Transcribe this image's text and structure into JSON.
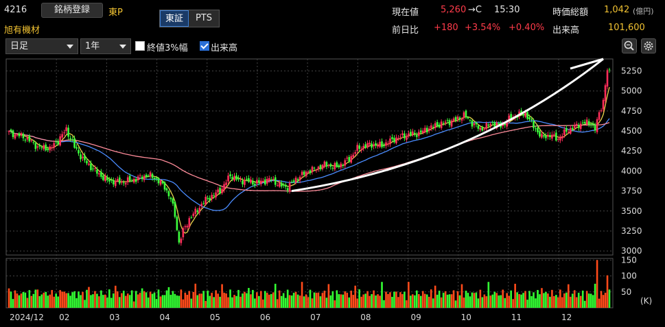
{
  "header": {
    "code": "4216",
    "register_label": "銘柄登録",
    "market": "東P",
    "name": "旭有機材",
    "exchange_tabs": [
      "東証",
      "PTS"
    ],
    "current_label": "現在値",
    "current_value": "5,260",
    "current_suffix": "→C",
    "current_time": "15:30",
    "marketcap_label": "時価総額",
    "marketcap_value": "1,042",
    "marketcap_unit": "(億円)",
    "change_label": "前日比",
    "change_abs": "+180",
    "change_pct": "+3.54%",
    "change_pct2": "+0.40%",
    "volume_label": "出来高",
    "volume_value": "101,600"
  },
  "toolbar": {
    "period_select": "日足",
    "range_select": "1年",
    "check1_label": "終値3%幅",
    "check1_checked": false,
    "check2_label": "出来高",
    "check2_checked": true,
    "zoom_icon": "magnifier-icon",
    "settings_icon": "gear-icon"
  },
  "colors": {
    "up": "#ff2d5a",
    "down": "#3cff3c",
    "ma_short": "#e8d44d",
    "ma_mid": "#4a8cff",
    "ma_long": "#ff8c9a",
    "vol_up": "#ff4a1a",
    "vol_down": "#33ff33"
  },
  "chart_data": {
    "type": "candlestick",
    "price_axis": {
      "ticks": [
        3000,
        3250,
        3500,
        3750,
        4000,
        4250,
        4500,
        4750,
        5000,
        5250
      ],
      "range": [
        2950,
        5400
      ]
    },
    "volume_axis": {
      "ticks": [
        50,
        100,
        150
      ],
      "unit": "(K)",
      "range": [
        0,
        155
      ]
    },
    "x_labels": [
      "2024/12",
      "02",
      "03",
      "04",
      "05",
      "06",
      "07",
      "08",
      "09",
      "10",
      "11",
      "12"
    ],
    "close_anchors": [
      [
        0,
        4480
      ],
      [
        8,
        4420
      ],
      [
        14,
        4300
      ],
      [
        20,
        4280
      ],
      [
        24,
        4380
      ],
      [
        28,
        4520
      ],
      [
        32,
        4300
      ],
      [
        36,
        4150
      ],
      [
        42,
        4000
      ],
      [
        48,
        3880
      ],
      [
        55,
        3860
      ],
      [
        62,
        3900
      ],
      [
        68,
        3950
      ],
      [
        72,
        3900
      ],
      [
        76,
        3800
      ],
      [
        79,
        3650
      ],
      [
        81,
        3450
      ],
      [
        83,
        3100
      ],
      [
        85,
        3250
      ],
      [
        88,
        3400
      ],
      [
        92,
        3520
      ],
      [
        96,
        3640
      ],
      [
        100,
        3700
      ],
      [
        104,
        3780
      ],
      [
        108,
        3950
      ],
      [
        112,
        3880
      ],
      [
        116,
        3880
      ],
      [
        120,
        3850
      ],
      [
        124,
        3870
      ],
      [
        128,
        3900
      ],
      [
        132,
        3820
      ],
      [
        136,
        3800
      ],
      [
        140,
        3900
      ],
      [
        146,
        4000
      ],
      [
        150,
        4030
      ],
      [
        154,
        4080
      ],
      [
        160,
        4050
      ],
      [
        166,
        4150
      ],
      [
        170,
        4280
      ],
      [
        176,
        4330
      ],
      [
        182,
        4320
      ],
      [
        188,
        4400
      ],
      [
        194,
        4450
      ],
      [
        200,
        4470
      ],
      [
        206,
        4550
      ],
      [
        212,
        4600
      ],
      [
        218,
        4640
      ],
      [
        222,
        4700
      ],
      [
        226,
        4600
      ],
      [
        230,
        4520
      ],
      [
        236,
        4600
      ],
      [
        240,
        4560
      ],
      [
        244,
        4650
      ],
      [
        248,
        4700
      ],
      [
        252,
        4720
      ],
      [
        256,
        4560
      ],
      [
        260,
        4420
      ],
      [
        264,
        4450
      ],
      [
        268,
        4400
      ],
      [
        272,
        4500
      ],
      [
        276,
        4550
      ],
      [
        280,
        4600
      ],
      [
        284,
        4600
      ],
      [
        286,
        4520
      ],
      [
        288,
        4720
      ],
      [
        290,
        4880
      ],
      [
        292,
        5260
      ]
    ],
    "volume_peaks_k": [
      {
        "i": 287,
        "v": 150
      },
      {
        "i": 292,
        "v": 102
      }
    ],
    "trend_arrow": {
      "from": [
        138,
        3750
      ],
      "to": [
        290,
        5400
      ]
    }
  }
}
